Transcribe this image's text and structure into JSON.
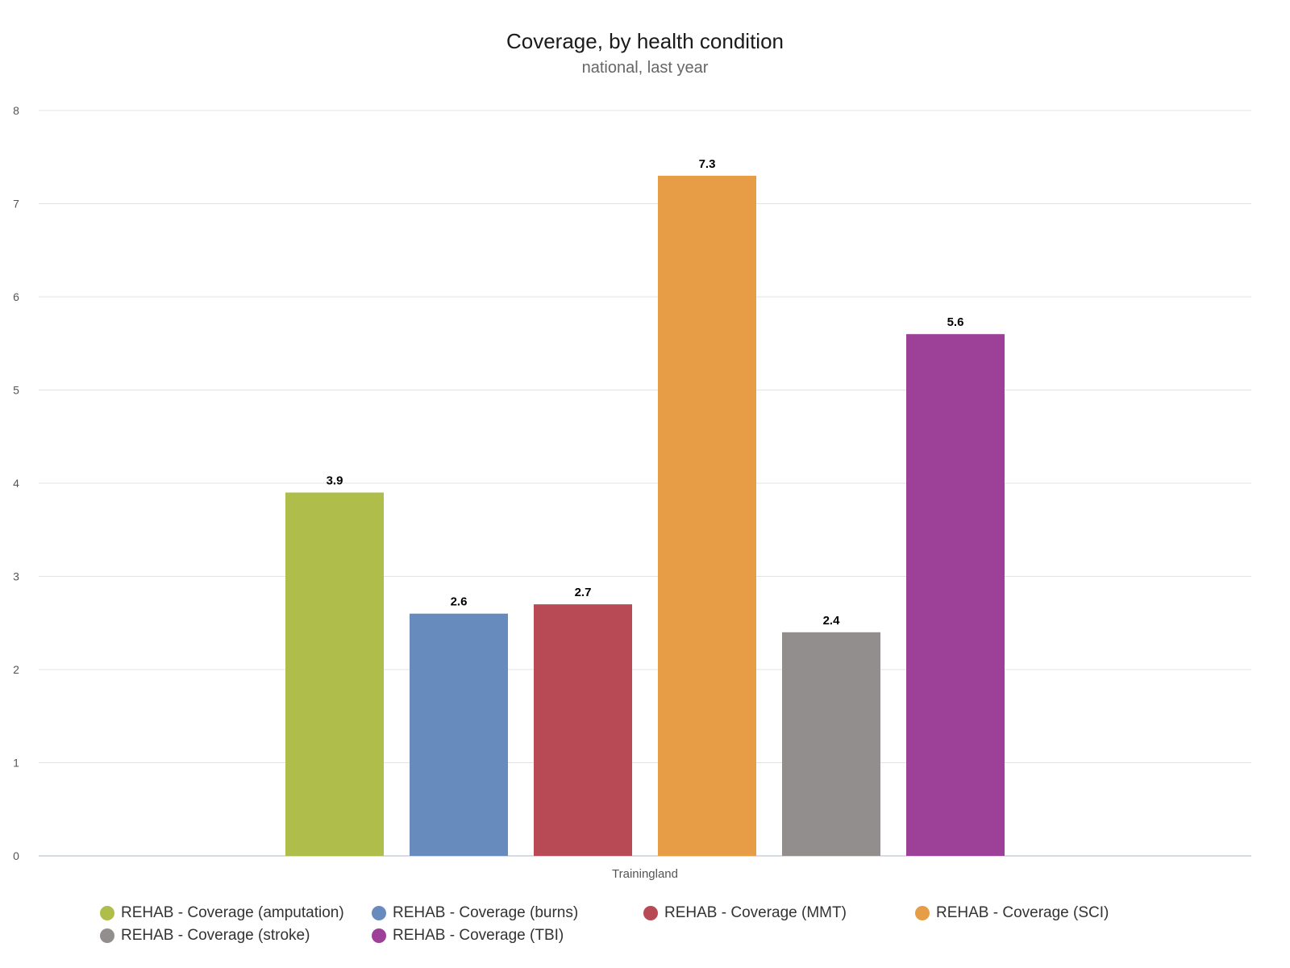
{
  "chart_data": {
    "type": "bar",
    "title": "Coverage, by health condition",
    "subtitle": "national, last year",
    "categories": [
      "Trainingland"
    ],
    "ylim": [
      0,
      8
    ],
    "yticks": [
      0,
      1,
      2,
      3,
      4,
      5,
      6,
      7,
      8
    ],
    "grid": true,
    "legend_position": "bottom",
    "series": [
      {
        "name": "REHAB - Coverage (amputation)",
        "values": [
          3.9
        ],
        "label": "3.9",
        "color": "#afbd4b"
      },
      {
        "name": "REHAB - Coverage (burns)",
        "values": [
          2.6
        ],
        "label": "2.6",
        "color": "#688bbe"
      },
      {
        "name": "REHAB - Coverage (MMT)",
        "values": [
          2.7
        ],
        "label": "2.7",
        "color": "#b84a56"
      },
      {
        "name": "REHAB - Coverage (SCI)",
        "values": [
          7.3
        ],
        "label": "7.3",
        "color": "#e79d45"
      },
      {
        "name": "REHAB - Coverage (stroke)",
        "values": [
          2.4
        ],
        "label": "2.4",
        "color": "#928e8d"
      },
      {
        "name": "REHAB - Coverage (TBI)",
        "values": [
          5.6
        ],
        "label": "5.6",
        "color": "#9d4098"
      }
    ]
  }
}
